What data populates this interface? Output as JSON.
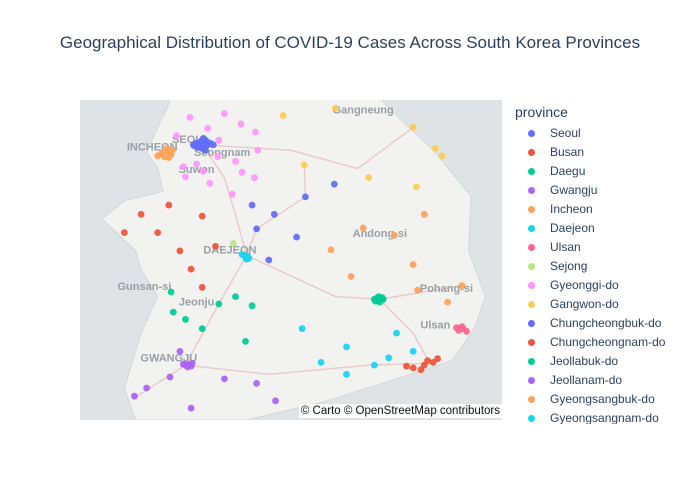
{
  "title": "Geographical Distribution of COVID-19 Cases Across South Korea Provinces",
  "legend": {
    "title": "province",
    "items": [
      {
        "label": "Seoul",
        "color": "#636efa"
      },
      {
        "label": "Busan",
        "color": "#ef553b"
      },
      {
        "label": "Daegu",
        "color": "#00cc96"
      },
      {
        "label": "Gwangju",
        "color": "#ab63fa"
      },
      {
        "label": "Incheon",
        "color": "#ffa15a"
      },
      {
        "label": "Daejeon",
        "color": "#19d3f3"
      },
      {
        "label": "Ulsan",
        "color": "#ff6692"
      },
      {
        "label": "Sejong",
        "color": "#b6e880"
      },
      {
        "label": "Gyeonggi-do",
        "color": "#ff97ff"
      },
      {
        "label": "Gangwon-do",
        "color": "#fecb52"
      },
      {
        "label": "Chungcheongbuk-do",
        "color": "#636efa"
      },
      {
        "label": "Chungcheongnam-do",
        "color": "#ef553b"
      },
      {
        "label": "Jeollabuk-do",
        "color": "#00cc96"
      },
      {
        "label": "Jeollanam-do",
        "color": "#ab63fa"
      },
      {
        "label": "Gyeongsangbuk-do",
        "color": "#ffa15a"
      },
      {
        "label": "Gyeongsangnam-do",
        "color": "#19d3f3"
      }
    ]
  },
  "map": {
    "attribution": "© Carto © OpenStreetMap contributors",
    "labels": [
      "Gangneung",
      "SEOUL",
      "INCHEON",
      "Seongnam",
      "Suwon",
      "Andong-si",
      "DAEJEON",
      "Pohang-si",
      "Gunsan-si",
      "Jeonju",
      "Ulsan",
      "GWANGJU"
    ],
    "colors": {
      "sea": "#dfe3e6",
      "land": "#f2f2f0",
      "roads": "#e8c9c9",
      "labels": "#9aa0a6"
    }
  },
  "chart_data": {
    "type": "scatter",
    "title": "Geographical Distribution of COVID-19 Cases Across South Korea Provinces",
    "legend_title": "province",
    "legend_placement": "right",
    "series": [
      {
        "name": "Seoul",
        "points": [
          [
            37.56,
            126.92
          ],
          [
            37.58,
            126.95
          ],
          [
            37.55,
            126.98
          ],
          [
            37.57,
            127.0
          ],
          [
            37.54,
            127.02
          ],
          [
            37.59,
            127.03
          ],
          [
            37.53,
            126.96
          ],
          [
            37.6,
            126.99
          ],
          [
            37.56,
            127.05
          ],
          [
            37.52,
            127.0
          ],
          [
            37.58,
            127.07
          ],
          [
            37.55,
            126.93
          ],
          [
            37.61,
            127.03
          ],
          [
            37.57,
            127.02
          ],
          [
            37.54,
            126.99
          ],
          [
            37.63,
            127.01
          ],
          [
            37.5,
            127.03
          ],
          [
            37.58,
            126.98
          ],
          [
            37.56,
            127.1
          ]
        ]
      },
      {
        "name": "Busan",
        "points": [
          [
            35.12,
            128.9
          ],
          [
            35.15,
            129.0
          ],
          [
            35.18,
            129.08
          ],
          [
            35.1,
            128.97
          ],
          [
            35.22,
            129.12
          ],
          [
            35.14,
            128.84
          ],
          [
            35.2,
            129.03
          ]
        ]
      },
      {
        "name": "Daegu",
        "points": [
          [
            35.87,
            128.55
          ],
          [
            35.88,
            128.6
          ],
          [
            35.86,
            128.58
          ],
          [
            35.89,
            128.62
          ],
          [
            35.85,
            128.56
          ],
          [
            35.9,
            128.59
          ],
          [
            35.87,
            128.63
          ],
          [
            35.84,
            128.6
          ],
          [
            35.88,
            128.57
          ]
        ]
      },
      {
        "name": "Gwangju",
        "points": [
          [
            35.15,
            126.85
          ],
          [
            35.16,
            126.88
          ],
          [
            35.14,
            126.9
          ],
          [
            35.17,
            126.91
          ],
          [
            35.13,
            126.87
          ],
          [
            35.16,
            126.83
          ]
        ]
      },
      {
        "name": "Incheon",
        "points": [
          [
            37.46,
            126.63
          ],
          [
            37.49,
            126.7
          ],
          [
            37.45,
            126.72
          ],
          [
            37.52,
            126.68
          ],
          [
            37.48,
            126.65
          ],
          [
            37.42,
            126.7
          ],
          [
            37.44,
            126.6
          ],
          [
            37.5,
            126.73
          ],
          [
            37.43,
            126.66
          ]
        ]
      },
      {
        "name": "Daejeon",
        "points": [
          [
            36.35,
            127.38
          ],
          [
            36.34,
            127.41
          ],
          [
            36.33,
            127.39
          ],
          [
            36.32,
            127.42
          ],
          [
            36.36,
            127.36
          ],
          [
            36.31,
            127.4
          ]
        ]
      },
      {
        "name": "Ulsan",
        "points": [
          [
            35.53,
            129.31
          ],
          [
            35.55,
            129.35
          ],
          [
            35.57,
            129.34
          ],
          [
            35.52,
            129.38
          ],
          [
            35.56,
            129.29
          ]
        ]
      },
      {
        "name": "Sejong",
        "points": [
          [
            36.48,
            127.28
          ]
        ]
      },
      {
        "name": "Gyeonggi-do",
        "points": [
          [
            37.74,
            127.05
          ],
          [
            37.43,
            127.14
          ],
          [
            37.27,
            127.01
          ],
          [
            37.32,
            126.83
          ],
          [
            37.66,
            126.77
          ],
          [
            37.9,
            127.2
          ],
          [
            37.2,
            127.47
          ],
          [
            37.38,
            127.3
          ],
          [
            37.79,
            127.35
          ],
          [
            37.5,
            127.5
          ],
          [
            37.14,
            127.07
          ],
          [
            37.61,
            127.15
          ],
          [
            37.86,
            126.89
          ],
          [
            37.35,
            126.95
          ],
          [
            37.21,
            126.85
          ],
          [
            37.02,
            127.27
          ],
          [
            37.7,
            127.48
          ],
          [
            37.26,
            127.36
          ]
        ]
      },
      {
        "name": "Gangwon-do",
        "points": [
          [
            37.88,
            127.73
          ],
          [
            37.75,
            128.9
          ],
          [
            37.34,
            127.92
          ],
          [
            37.44,
            129.16
          ],
          [
            37.2,
            128.5
          ],
          [
            38.2,
            128.59
          ],
          [
            37.52,
            129.1
          ],
          [
            37.1,
            128.93
          ],
          [
            37.96,
            128.2
          ]
        ]
      },
      {
        "name": "Chungcheongbuk-do",
        "points": [
          [
            36.64,
            127.49
          ],
          [
            36.99,
            127.93
          ],
          [
            37.13,
            128.19
          ],
          [
            36.8,
            127.65
          ],
          [
            36.55,
            127.85
          ],
          [
            36.3,
            127.6
          ],
          [
            36.9,
            127.45
          ]
        ]
      },
      {
        "name": "Chungcheongnam-do",
        "points": [
          [
            36.78,
            127.0
          ],
          [
            36.45,
            127.12
          ],
          [
            36.6,
            126.6
          ],
          [
            36.8,
            126.45
          ],
          [
            36.2,
            126.9
          ],
          [
            36.6,
            126.3
          ],
          [
            36.0,
            127.0
          ],
          [
            36.9,
            126.7
          ],
          [
            36.4,
            126.8
          ]
        ]
      },
      {
        "name": "Jeollabuk-do",
        "points": [
          [
            35.82,
            127.15
          ],
          [
            35.95,
            126.72
          ],
          [
            35.73,
            126.74
          ],
          [
            35.41,
            127.39
          ],
          [
            35.9,
            127.3
          ],
          [
            35.65,
            126.85
          ],
          [
            35.55,
            127.0
          ],
          [
            35.8,
            127.45
          ]
        ]
      },
      {
        "name": "Jeollanam-do",
        "points": [
          [
            34.76,
            127.66
          ],
          [
            34.81,
            126.39
          ],
          [
            34.95,
            127.49
          ],
          [
            35.02,
            126.71
          ],
          [
            34.68,
            126.9
          ],
          [
            35.0,
            127.2
          ],
          [
            34.9,
            126.5
          ],
          [
            35.3,
            126.8
          ]
        ]
      },
      {
        "name": "Gyeongsangbuk-do",
        "points": [
          [
            36.02,
            129.34
          ],
          [
            35.84,
            129.21
          ],
          [
            36.57,
            128.73
          ],
          [
            36.12,
            128.34
          ],
          [
            36.41,
            128.16
          ],
          [
            36.8,
            129.0
          ],
          [
            36.25,
            128.9
          ],
          [
            35.97,
            128.94
          ],
          [
            36.65,
            128.45
          ]
        ]
      },
      {
        "name": "Gyeongsangnam-do",
        "points": [
          [
            35.23,
            128.68
          ],
          [
            35.18,
            128.07
          ],
          [
            35.5,
            128.75
          ],
          [
            35.35,
            128.3
          ],
          [
            35.05,
            128.3
          ],
          [
            35.55,
            127.9
          ],
          [
            35.3,
            128.9
          ],
          [
            35.15,
            128.55
          ]
        ]
      }
    ]
  }
}
